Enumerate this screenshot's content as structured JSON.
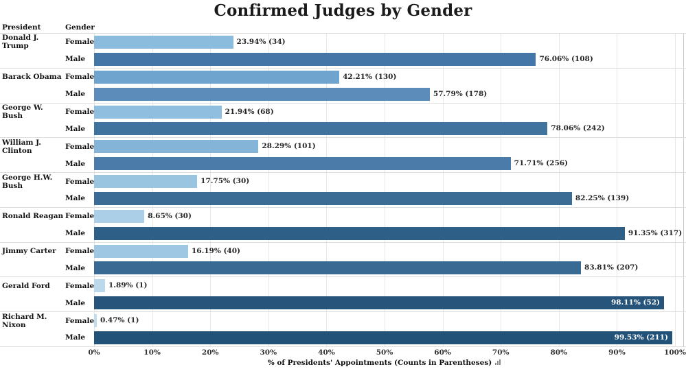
{
  "title": "Confirmed Judges by Gender",
  "column_headers": {
    "president": "President",
    "gender": "Gender"
  },
  "axis": {
    "label": "% of Presidents' Appointments (Counts in Parentheses)",
    "ticks": [
      "0%",
      "10%",
      "20%",
      "30%",
      "40%",
      "50%",
      "60%",
      "70%",
      "80%",
      "90%",
      "100%"
    ],
    "sort_icon": "sort-icon"
  },
  "colors": {
    "grid": "#e7e7e7",
    "separator": "#dedede",
    "label_outside": "#262626",
    "label_inside": "#ffffff"
  },
  "chart_data": {
    "type": "bar",
    "orientation": "horizontal",
    "title": "Confirmed Judges by Gender",
    "xlabel": "% of Presidents' Appointments (Counts in Parentheses)",
    "xlim": [
      0,
      100
    ],
    "grid": true,
    "row_levels": [
      "President",
      "Gender"
    ],
    "groups": [
      {
        "president": "Donald J. Trump",
        "bars": [
          {
            "gender": "Female",
            "value": 23.94,
            "count": 34,
            "label": "23.94% (34)",
            "color": "#8cbcdd",
            "label_inside": false
          },
          {
            "gender": "Male",
            "value": 76.06,
            "count": 108,
            "label": "76.06% (108)",
            "color": "#4477a7",
            "label_inside": false
          }
        ]
      },
      {
        "president": "Barack Obama",
        "bars": [
          {
            "gender": "Female",
            "value": 42.21,
            "count": 130,
            "label": "42.21% (130)",
            "color": "#6ea4cd",
            "label_inside": false
          },
          {
            "gender": "Male",
            "value": 57.79,
            "count": 178,
            "label": "57.79% (178)",
            "color": "#5b8cba",
            "label_inside": false
          }
        ]
      },
      {
        "president": "George W. Bush",
        "bars": [
          {
            "gender": "Female",
            "value": 21.94,
            "count": 68,
            "label": "21.94% (68)",
            "color": "#90bede",
            "label_inside": false
          },
          {
            "gender": "Male",
            "value": 78.06,
            "count": 242,
            "label": "78.06% (242)",
            "color": "#41739f",
            "label_inside": false
          }
        ]
      },
      {
        "president": "William J. Clinton",
        "bars": [
          {
            "gender": "Female",
            "value": 28.29,
            "count": 101,
            "label": "28.29% (101)",
            "color": "#84b4d8",
            "label_inside": false
          },
          {
            "gender": "Male",
            "value": 71.71,
            "count": 256,
            "label": "71.71% (256)",
            "color": "#4a7ba9",
            "label_inside": false
          }
        ]
      },
      {
        "president": "George H.W. Bush",
        "bars": [
          {
            "gender": "Female",
            "value": 17.75,
            "count": 30,
            "label": "17.75% (30)",
            "color": "#9ac5e1",
            "label_inside": false
          },
          {
            "gender": "Male",
            "value": 82.25,
            "count": 139,
            "label": "82.25% (139)",
            "color": "#3b6c96",
            "label_inside": false
          }
        ]
      },
      {
        "president": "Ronald Reagan",
        "bars": [
          {
            "gender": "Female",
            "value": 8.65,
            "count": 30,
            "label": "8.65% (30)",
            "color": "#abcfe6",
            "label_inside": false
          },
          {
            "gender": "Male",
            "value": 91.35,
            "count": 317,
            "label": "91.35% (317)",
            "color": "#2d5f87",
            "label_inside": false
          }
        ]
      },
      {
        "president": "Jimmy Carter",
        "bars": [
          {
            "gender": "Female",
            "value": 16.19,
            "count": 40,
            "label": "16.19% (40)",
            "color": "#9dc7e2",
            "label_inside": false
          },
          {
            "gender": "Male",
            "value": 83.81,
            "count": 207,
            "label": "83.81% (207)",
            "color": "#396a93",
            "label_inside": false
          }
        ]
      },
      {
        "president": "Gerald Ford",
        "bars": [
          {
            "gender": "Female",
            "value": 1.89,
            "count": 1,
            "label": "1.89% (1)",
            "color": "#bcd8eb",
            "label_inside": false
          },
          {
            "gender": "Male",
            "value": 98.11,
            "count": 52,
            "label": "98.11% (52)",
            "color": "#26547b",
            "label_inside": true
          }
        ]
      },
      {
        "president": "Richard M. Nixon",
        "bars": [
          {
            "gender": "Female",
            "value": 0.47,
            "count": 1,
            "label": "0.47% (1)",
            "color": "#c2dcec",
            "label_inside": false
          },
          {
            "gender": "Male",
            "value": 99.53,
            "count": 211,
            "label": "99.53% (211)",
            "color": "#235279",
            "label_inside": true
          }
        ]
      }
    ]
  }
}
